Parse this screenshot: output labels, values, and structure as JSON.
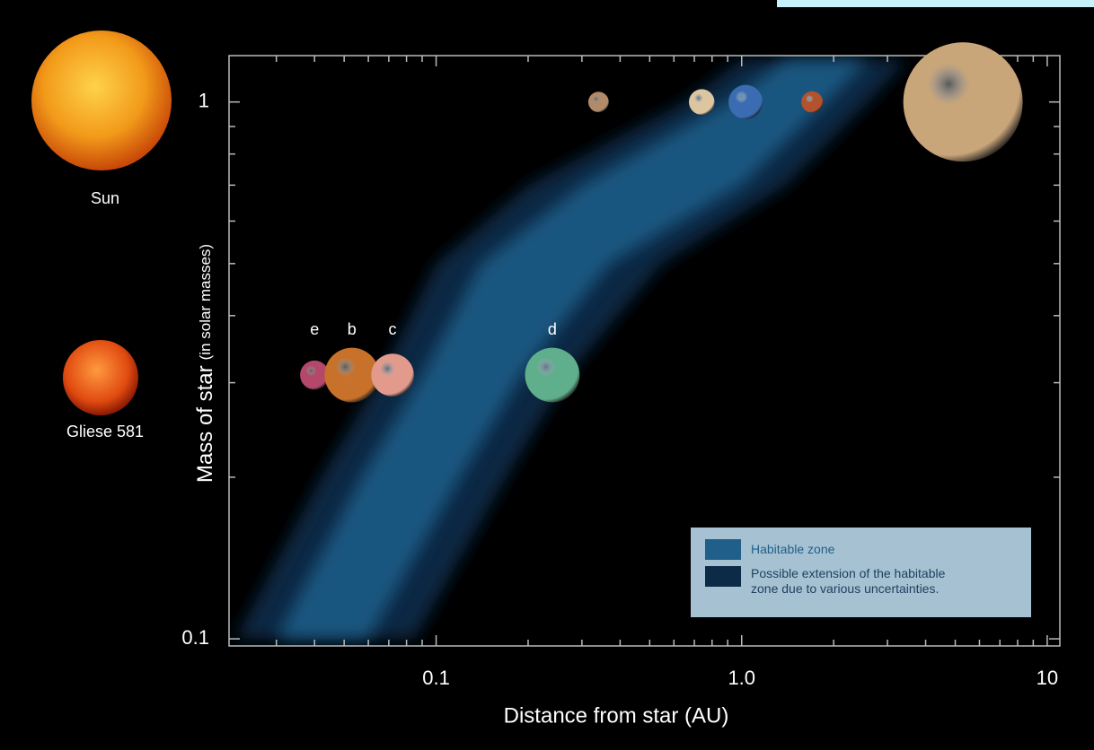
{
  "chart_data": {
    "type": "scatter",
    "x_label": "Distance from star (AU)",
    "y_label": "Mass of star",
    "y_label_note": "(in solar masses)",
    "log_scale": true,
    "xlim": [
      0.021,
      11
    ],
    "ylim": [
      0.097,
      1.22
    ],
    "xticks": [
      0.1,
      {
        "value": 1,
        "label": "1.0"
      },
      10
    ],
    "yticks": [
      0.1,
      1
    ],
    "xminor": [
      0.03,
      0.04,
      0.05,
      0.06,
      0.07,
      0.08,
      0.09,
      0.2,
      0.3,
      0.4,
      0.5,
      0.6,
      0.7,
      0.8,
      0.9,
      2,
      3,
      4,
      5,
      6,
      7,
      8,
      9
    ],
    "yminor": [
      0.2,
      0.3,
      0.4,
      0.5,
      0.6,
      0.7,
      0.8,
      0.9
    ],
    "stars": [
      "Sun",
      "Gliese 581"
    ],
    "planets": {
      "x": [
        0.04,
        0.053,
        0.072,
        0.24,
        0.34,
        0.74,
        1.03,
        1.7,
        5.3
      ],
      "values": [
        0.31,
        0.31,
        0.31,
        0.31,
        1,
        1,
        1,
        1,
        1
      ],
      "sizes": [
        0.85,
        1.6,
        1.25,
        1.6,
        0.6,
        0.75,
        1,
        0.63,
        3.5
      ],
      "labels": [
        "e",
        "b",
        "c",
        "d",
        null,
        null,
        null,
        null,
        null
      ],
      "colors": [
        "#b3486a",
        "#c8712b",
        "#e29a8c",
        "#5fae8c",
        "#b08a6a",
        "#dcc6a0",
        "#3b6cb2",
        "#b3522c",
        "#c9a57a"
      ]
    },
    "mass": [
      0.1,
      0.2,
      0.31,
      0.5,
      0.7,
      1,
      1.2
    ],
    "zones": [
      {
        "name": "Possible extension of the habitable zone due to various uncertainties.",
        "color": "#0d2a47",
        "inner": [
          0.022,
          0.042,
          0.066,
          0.1,
          0.2,
          0.65,
          1.0
        ],
        "outer": [
          0.085,
          0.17,
          0.27,
          0.55,
          1.4,
          2.6,
          3.5
        ]
      },
      {
        "name": "Habitable zone",
        "color": "#1f5f8a",
        "inner": [
          0.03,
          0.057,
          0.09,
          0.14,
          0.3,
          0.9,
          1.4
        ],
        "outer": [
          0.06,
          0.12,
          0.19,
          0.37,
          1.0,
          1.9,
          2.6
        ]
      }
    ]
  }
}
